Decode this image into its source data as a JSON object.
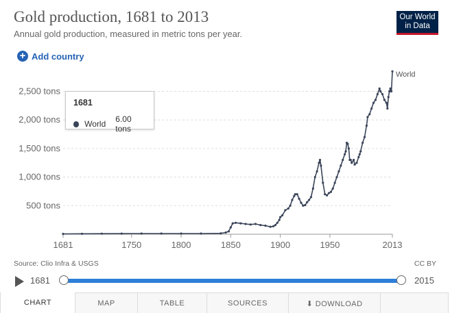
{
  "header": {
    "title": "Gold production, 1681 to 2013",
    "subtitle": "Annual gold production, measured in metric tons per year.",
    "logo_line1": "Our World",
    "logo_line2": "in Data"
  },
  "controls": {
    "add_country": "Add country",
    "timeline_start": "1681",
    "timeline_end": "2015"
  },
  "tooltip": {
    "year": "1681",
    "entity": "World",
    "value": "6.00 tons"
  },
  "footer": {
    "source": "Source: Clio Infra & USGS",
    "license": "CC BY"
  },
  "tabs": [
    "CHART",
    "MAP",
    "TABLE",
    "SOURCES",
    "DOWNLOAD",
    ""
  ],
  "colors": {
    "series": "#3a4459",
    "accent": "#2563b5",
    "slider": "#2d7fd8",
    "logo_bg": "#002147",
    "logo_accent": "#c4162c"
  },
  "chart_data": {
    "type": "line",
    "title": "Gold production, 1681 to 2013",
    "xlabel": "",
    "ylabel": "",
    "xlim": [
      1681,
      2013
    ],
    "ylim": [
      0,
      2900
    ],
    "x_ticks": [
      1681,
      1750,
      1800,
      1850,
      1900,
      1950,
      2013
    ],
    "y_ticks": [
      500,
      1000,
      1500,
      2000,
      2500
    ],
    "y_tick_labels": [
      "500 tons",
      "1,000 tons",
      "1,500 tons",
      "2,000 tons",
      "2,500 tons"
    ],
    "grid": "horizontal dashed",
    "series": [
      {
        "name": "World",
        "label": "World",
        "x": [
          1681,
          1700,
          1720,
          1740,
          1760,
          1780,
          1800,
          1820,
          1840,
          1845,
          1848,
          1850,
          1852,
          1855,
          1860,
          1865,
          1870,
          1875,
          1880,
          1885,
          1890,
          1893,
          1895,
          1897,
          1899,
          1900,
          1902,
          1905,
          1908,
          1910,
          1912,
          1914,
          1915,
          1917,
          1919,
          1921,
          1923,
          1925,
          1927,
          1929,
          1931,
          1933,
          1935,
          1937,
          1939,
          1940,
          1941,
          1943,
          1945,
          1947,
          1949,
          1951,
          1953,
          1955,
          1957,
          1959,
          1961,
          1963,
          1965,
          1966,
          1967,
          1968,
          1969,
          1970,
          1971,
          1972,
          1974,
          1975,
          1977,
          1979,
          1980,
          1981,
          1983,
          1985,
          1987,
          1988,
          1990,
          1992,
          1994,
          1996,
          1998,
          2000,
          2001,
          2003,
          2005,
          2007,
          2008,
          2009,
          2010,
          2011,
          2012,
          2013
        ],
        "values": [
          6,
          8,
          10,
          11,
          12,
          12,
          12,
          12,
          15,
          30,
          50,
          120,
          190,
          200,
          190,
          180,
          170,
          180,
          160,
          150,
          130,
          140,
          160,
          200,
          250,
          300,
          330,
          420,
          450,
          500,
          600,
          670,
          700,
          700,
          620,
          550,
          500,
          510,
          560,
          600,
          650,
          800,
          1000,
          1100,
          1250,
          1300,
          1200,
          900,
          700,
          680,
          720,
          740,
          800,
          900,
          1000,
          1100,
          1200,
          1300,
          1400,
          1450,
          1600,
          1580,
          1500,
          1300,
          1300,
          1250,
          1300,
          1220,
          1250,
          1350,
          1400,
          1450,
          1600,
          1700,
          1900,
          2050,
          2100,
          2200,
          2300,
          2350,
          2450,
          2550,
          2500,
          2450,
          2350,
          2300,
          2200,
          2400,
          2500,
          2550,
          2500,
          2850
        ]
      }
    ]
  }
}
